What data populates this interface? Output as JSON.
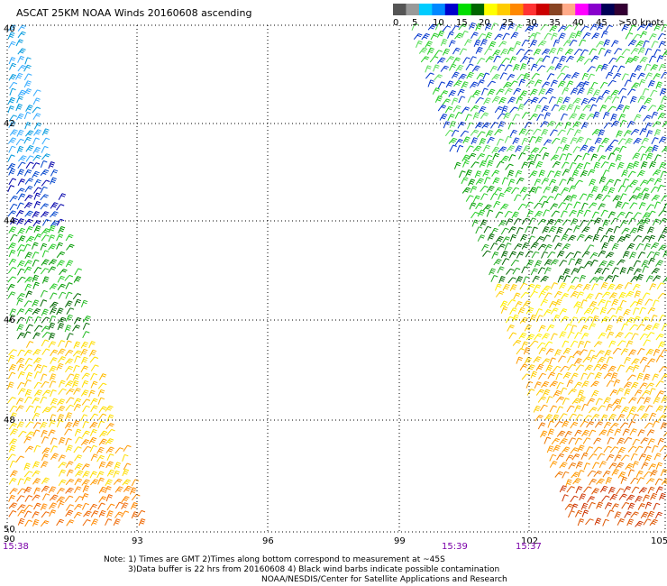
{
  "title": "ASCAT 25KM NOAA Winds 20160608 ascending",
  "legend": {
    "colors": [
      "#555555",
      "#999999",
      "#00ccff",
      "#0088ff",
      "#0000cc",
      "#00dd00",
      "#006600",
      "#ffff00",
      "#ffcc00",
      "#ff8800",
      "#ff3333",
      "#cc0000",
      "#884422",
      "#ffaa88",
      "#ff00ff",
      "#8800cc",
      "#000055",
      "#330033"
    ],
    "labels": [
      "0",
      "5",
      "10",
      "15",
      "20",
      "25",
      "30",
      "35",
      "40",
      "45",
      ">50 knots"
    ]
  },
  "map": {
    "lat_labels": [
      "40",
      "42",
      "44",
      "46",
      "48",
      "50"
    ],
    "lon_labels": [
      "90",
      "93",
      "96",
      "99",
      "102",
      "105"
    ],
    "times": [
      "15:38",
      "15:39",
      "15:37"
    ]
  },
  "notes": {
    "line1": "Note: 1) Times are GMT 2)Times along bottom correspond to measurement at ~45S",
    "line2": "3)Data buffer is 22 hrs from 20160608 4) Black wind barbs indicate possible contamination",
    "line3": "NOAA/NESDIS/Center for Satellite Applications and Research"
  }
}
